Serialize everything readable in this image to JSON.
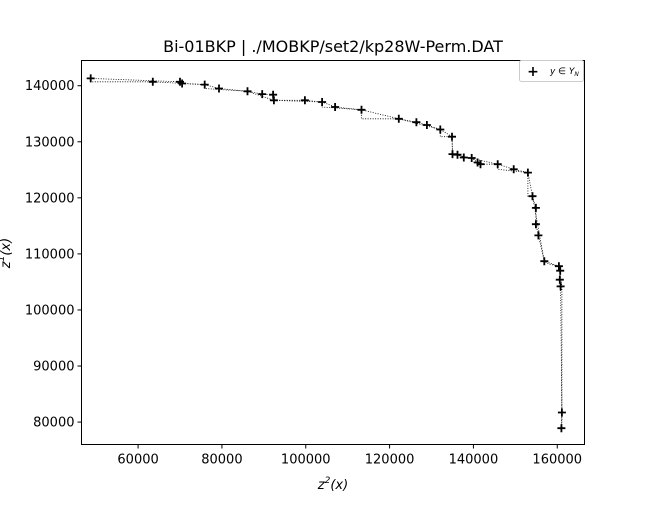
{
  "chart_data": {
    "type": "scatter",
    "title": "Bi-01BKP | ./MOBKP/set2/kp28W-Perm.DAT",
    "xlabel_base": "z",
    "xlabel_sup": "2",
    "xlabel_tail": "(x)",
    "ylabel_base": "z",
    "ylabel_sup": "1",
    "ylabel_tail": "(x)",
    "xlim": [
      46500,
      166500
    ],
    "ylim": [
      76000,
      144500
    ],
    "xticks": [
      60000,
      80000,
      100000,
      120000,
      140000,
      160000
    ],
    "yticks": [
      80000,
      90000,
      100000,
      110000,
      120000,
      130000,
      140000
    ],
    "legend": {
      "placement": "top-right",
      "label_main": "y ∈ Y",
      "label_sub": "N",
      "marker": "+"
    },
    "marker_color": "#000000",
    "grid": false,
    "series": [
      {
        "points": [
          [
            48700,
            141300
          ],
          [
            63500,
            140700
          ],
          [
            70000,
            140700
          ],
          [
            70500,
            140400
          ],
          [
            75900,
            140200
          ],
          [
            79300,
            139500
          ],
          [
            86100,
            139000
          ],
          [
            89600,
            138500
          ],
          [
            92200,
            138400
          ],
          [
            92400,
            137400
          ],
          [
            99800,
            137400
          ],
          [
            103900,
            137100
          ],
          [
            107000,
            136200
          ],
          [
            113300,
            135700
          ],
          [
            122200,
            134100
          ],
          [
            126400,
            133500
          ],
          [
            128900,
            133000
          ],
          [
            132100,
            132200
          ],
          [
            134900,
            130900
          ],
          [
            135000,
            127800
          ],
          [
            136200,
            127700
          ],
          [
            137700,
            127200
          ],
          [
            139600,
            127100
          ],
          [
            141000,
            126300
          ],
          [
            141700,
            126000
          ],
          [
            145800,
            126000
          ],
          [
            149600,
            125100
          ],
          [
            153000,
            124500
          ],
          [
            154100,
            120300
          ],
          [
            154900,
            118200
          ],
          [
            154900,
            115300
          ],
          [
            155500,
            113300
          ],
          [
            156900,
            108700
          ],
          [
            160400,
            107800
          ],
          [
            160700,
            107000
          ],
          [
            160600,
            105400
          ],
          [
            160800,
            104200
          ],
          [
            161100,
            81700
          ],
          [
            161000,
            78900
          ]
        ]
      }
    ],
    "connectors": [
      [
        [
          48700,
          141300
        ],
        [
          70000,
          140700
        ],
        [
          70500,
          140400
        ],
        [
          75900,
          140200
        ],
        [
          79300,
          139500
        ],
        [
          86100,
          139000
        ],
        [
          89600,
          138500
        ],
        [
          92200,
          138400
        ],
        [
          92400,
          137400
        ],
        [
          99800,
          137400
        ],
        [
          103900,
          137100
        ],
        [
          107000,
          136200
        ],
        [
          113300,
          135700
        ],
        [
          122200,
          134100
        ],
        [
          126400,
          133500
        ],
        [
          128900,
          133000
        ],
        [
          132100,
          132200
        ],
        [
          134900,
          130900
        ],
        [
          135000,
          127800
        ],
        [
          136200,
          127700
        ],
        [
          137700,
          127200
        ],
        [
          139600,
          127100
        ],
        [
          141000,
          126300
        ],
        [
          141700,
          126000
        ],
        [
          145800,
          126000
        ],
        [
          149600,
          125100
        ],
        [
          153000,
          124500
        ],
        [
          154100,
          120300
        ],
        [
          154900,
          118200
        ],
        [
          154900,
          115300
        ],
        [
          155500,
          113300
        ],
        [
          156900,
          108700
        ],
        [
          160400,
          107800
        ],
        [
          160700,
          107000
        ],
        [
          160600,
          105400
        ],
        [
          160800,
          104200
        ],
        [
          161100,
          81700
        ],
        [
          161000,
          78900
        ]
      ],
      [
        [
          48700,
          141300
        ],
        [
          48700,
          140700
        ],
        [
          63500,
          140700
        ],
        [
          75900,
          140200
        ],
        [
          75900,
          139500
        ],
        [
          86100,
          139000
        ],
        [
          92400,
          137400
        ],
        [
          103900,
          137100
        ],
        [
          103900,
          136200
        ],
        [
          113300,
          135700
        ],
        [
          113300,
          134100
        ],
        [
          122200,
          134100
        ],
        [
          132100,
          132200
        ],
        [
          132100,
          130900
        ],
        [
          134900,
          130900
        ],
        [
          135000,
          127800
        ],
        [
          145800,
          126000
        ],
        [
          145800,
          125100
        ],
        [
          153000,
          124500
        ],
        [
          153000,
          120300
        ],
        [
          154100,
          120300
        ],
        [
          156900,
          108700
        ],
        [
          158000,
          108200
        ],
        [
          160400,
          107800
        ],
        [
          161100,
          104200
        ],
        [
          161100,
          78900
        ]
      ]
    ]
  }
}
